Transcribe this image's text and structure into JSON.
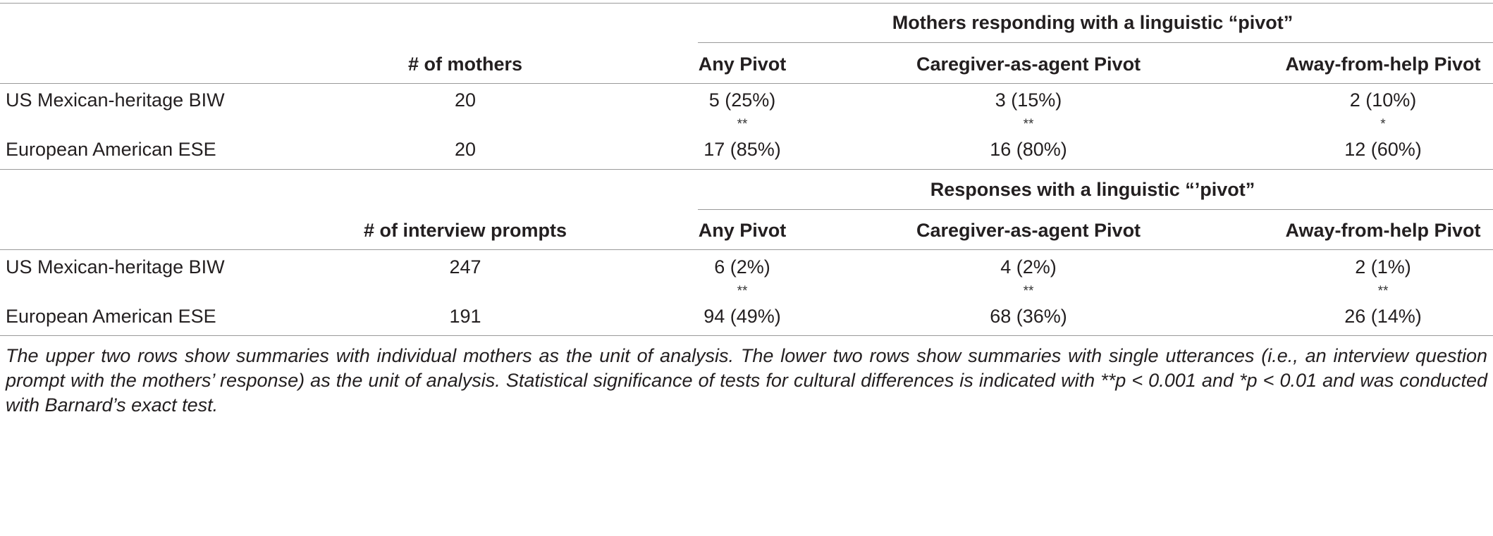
{
  "top_section": {
    "spanning_header": "Mothers responding with a linguistic “pivot”",
    "col_count": "# of mothers",
    "col_any": "Any Pivot",
    "col_caregiver": "Caregiver-as-agent Pivot",
    "col_away": "Away-from-help Pivot",
    "rows": [
      {
        "group": "US Mexican-heritage BIW",
        "count": "20",
        "any": "5 (25%)",
        "caregiver": "3 (15%)",
        "away": "2 (10%)"
      },
      {
        "group": "European American ESE",
        "count": "20",
        "any": "17 (85%)",
        "caregiver": "16 (80%)",
        "away": "12 (60%)"
      }
    ],
    "significance": {
      "any": "**",
      "caregiver": "**",
      "away": "*"
    }
  },
  "bottom_section": {
    "spanning_header": "Responses with a linguistic “’pivot”",
    "col_count": "# of interview prompts",
    "col_any": "Any Pivot",
    "col_caregiver": "Caregiver-as-agent Pivot",
    "col_away": "Away-from-help Pivot",
    "rows": [
      {
        "group": "US Mexican-heritage BIW",
        "count": "247",
        "any": "6 (2%)",
        "caregiver": "4 (2%)",
        "away": "2 (1%)"
      },
      {
        "group": "European American ESE",
        "count": "191",
        "any": "94 (49%)",
        "caregiver": "68 (36%)",
        "away": "26 (14%)"
      }
    ],
    "significance": {
      "any": "**",
      "caregiver": "**",
      "away": "**"
    }
  },
  "footnote": "The upper two rows show summaries with individual mothers as the unit of analysis. The lower two rows show summaries with single utterances (i.e., an interview question prompt with the mothers’ response) as the unit of analysis. Statistical significance of tests for cultural differences is indicated with **p < 0.001 and *p < 0.01 and was conducted with Barnard’s exact test."
}
